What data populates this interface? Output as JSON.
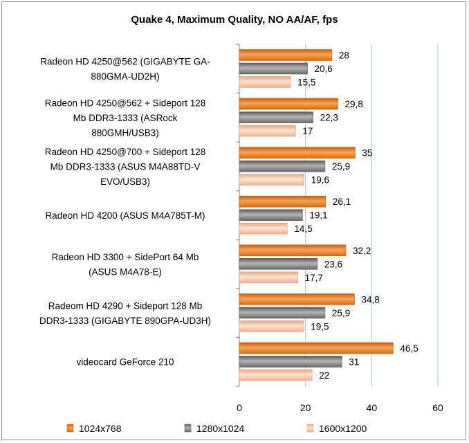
{
  "chart_data": {
    "type": "bar",
    "orientation": "horizontal",
    "title": "Quake 4, Maximum Quality, NO AA/AF, fps",
    "xlabel": "",
    "ylabel": "",
    "xlim": [
      0,
      60
    ],
    "ticks": [
      "0",
      "20",
      "40",
      "60"
    ],
    "tick_values": [
      0,
      20,
      40,
      60
    ],
    "grid": true,
    "legend_position": "bottom",
    "categories": [
      [
        "Radeon HD 4250@562 (GIGABYTE GA-",
        "880GMA-UD2H)"
      ],
      [
        "Radeon HD 4250@562 + Sideport 128",
        "Mb DDR3-1333 (ASRock",
        "880GMH/USB3)"
      ],
      [
        "Radeon HD 4250@700 + Sideport 128",
        "Mb DDR3-1333 (ASUS M4A88TD-V",
        "EVO/USB3)"
      ],
      [
        "Radeon HD 4200 (ASUS M4A785T-M)"
      ],
      [
        "Radeon HD 3300 + SidePort 64 Mb",
        "(ASUS M4A78-E)"
      ],
      [
        "Radeom HD 4290 + Sideport 128 Mb",
        "DDR3-1333 (GIGABYTE 890GPA-UD3H)"
      ],
      [
        "videocard GeForce 210"
      ]
    ],
    "series": [
      {
        "name": "1024x768",
        "color": "#e8781e",
        "values": [
          28,
          29.8,
          35,
          26.1,
          32.2,
          34.8,
          46.5
        ],
        "labels": [
          "28",
          "29,8",
          "35",
          "26,1",
          "32,2",
          "34,8",
          "46,5"
        ]
      },
      {
        "name": "1280x1024",
        "color": "#7f7f7f",
        "values": [
          20.6,
          22.3,
          25.9,
          19.1,
          23.6,
          25.9,
          31
        ],
        "labels": [
          "20,6",
          "22,3",
          "25,9",
          "19,1",
          "23,6",
          "25,9",
          "31"
        ]
      },
      {
        "name": "1600x1200",
        "color": "#f4bf9f",
        "values": [
          15.5,
          17,
          19.6,
          14.5,
          17.7,
          19.5,
          22
        ],
        "labels": [
          "15,5",
          "17",
          "19,6",
          "14,5",
          "17,7",
          "19,5",
          "22"
        ]
      }
    ]
  }
}
